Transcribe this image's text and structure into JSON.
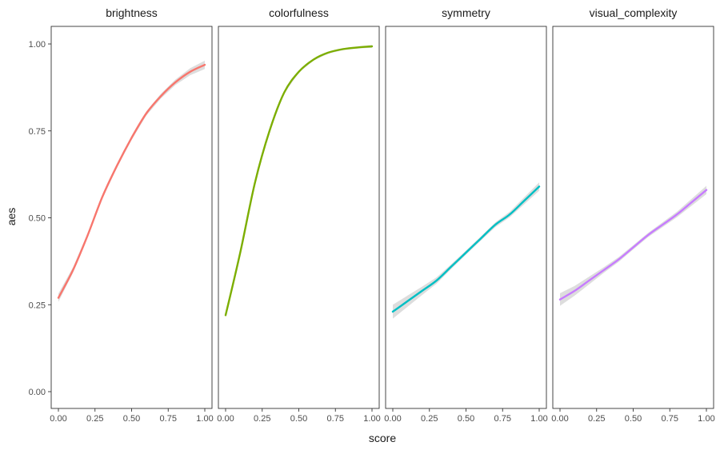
{
  "chart_data": {
    "type": "line",
    "facet_by": "variable",
    "xlabel": "score",
    "ylabel": "aes",
    "xlim": [
      0,
      1
    ],
    "ylim": [
      0,
      1
    ],
    "x_ticks": [
      0,
      0.25,
      0.5,
      0.75,
      1
    ],
    "x_tick_labels": [
      "0.00",
      "0.25",
      "0.50",
      "0.75",
      "1.00"
    ],
    "y_ticks": [
      0,
      0.25,
      0.5,
      0.75,
      1
    ],
    "y_tick_labels": [
      "0.00",
      "0.25",
      "0.50",
      "0.75",
      "1.00"
    ],
    "grid": false,
    "legend": "none",
    "confidence_band": true,
    "x": [
      0,
      0.1,
      0.2,
      0.3,
      0.4,
      0.5,
      0.6,
      0.7,
      0.8,
      0.9,
      1.0
    ],
    "series": [
      {
        "name": "brightness",
        "color": "#F8766D",
        "values": [
          0.27,
          0.35,
          0.45,
          0.56,
          0.65,
          0.73,
          0.8,
          0.85,
          0.89,
          0.92,
          0.94
        ],
        "ci_width": [
          0.012,
          0.008,
          0.006,
          0.006,
          0.006,
          0.006,
          0.006,
          0.007,
          0.008,
          0.01,
          0.012
        ]
      },
      {
        "name": "colorfulness",
        "color": "#7CAE00",
        "values": [
          0.22,
          0.4,
          0.6,
          0.75,
          0.86,
          0.92,
          0.955,
          0.975,
          0.985,
          0.99,
          0.993
        ],
        "ci_width": [
          0.005,
          0.004,
          0.003,
          0.003,
          0.003,
          0.003,
          0.003,
          0.003,
          0.003,
          0.003,
          0.004
        ]
      },
      {
        "name": "symmetry",
        "color": "#00BFC4",
        "values": [
          0.23,
          0.26,
          0.29,
          0.32,
          0.36,
          0.4,
          0.44,
          0.48,
          0.51,
          0.55,
          0.59
        ],
        "ci_width": [
          0.02,
          0.016,
          0.012,
          0.009,
          0.007,
          0.006,
          0.006,
          0.007,
          0.008,
          0.01,
          0.012
        ]
      },
      {
        "name": "visual_complexity",
        "color": "#C77CFF",
        "values": [
          0.265,
          0.29,
          0.32,
          0.35,
          0.38,
          0.415,
          0.45,
          0.48,
          0.51,
          0.545,
          0.58
        ],
        "ci_width": [
          0.018,
          0.014,
          0.011,
          0.008,
          0.007,
          0.006,
          0.006,
          0.007,
          0.008,
          0.01,
          0.012
        ]
      }
    ]
  }
}
